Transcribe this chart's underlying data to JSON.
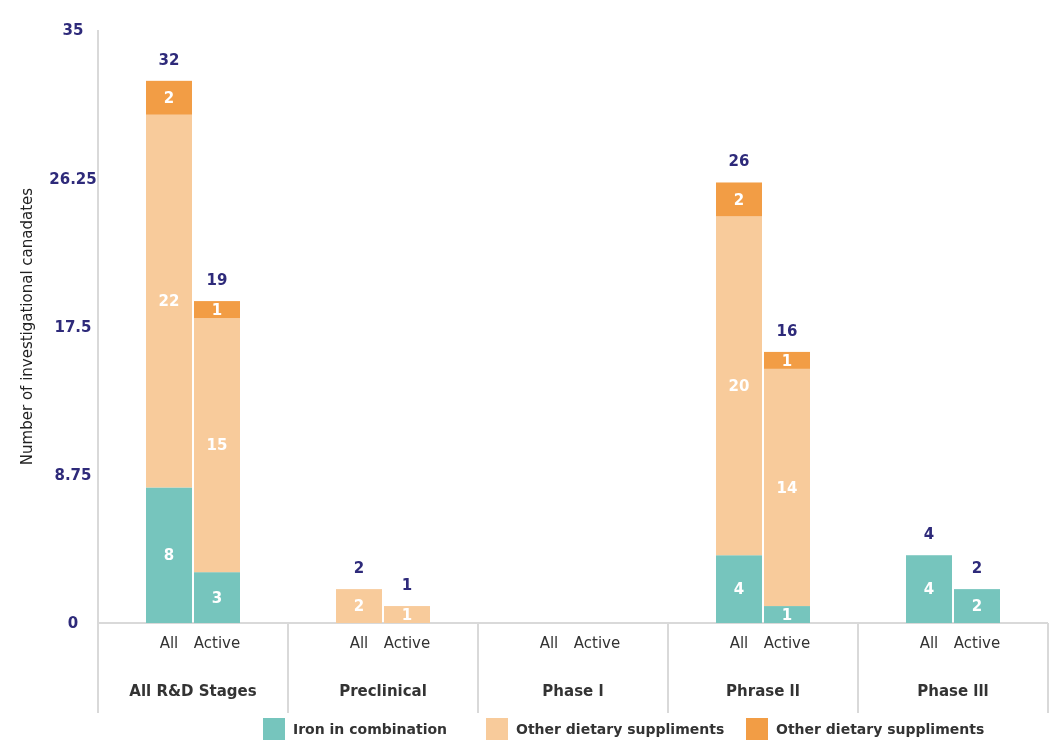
{
  "chart_data": {
    "type": "bar",
    "stacked": true,
    "ylabel": "Number of investigational canadates",
    "categories": [
      "All",
      "Active",
      "All",
      "Active",
      "All",
      "Active",
      "All",
      "Active",
      "All",
      "Active"
    ],
    "series": [
      {
        "name": "Iron in combination",
        "color": "#76c5bd",
        "values": [
          8,
          3,
          null,
          null,
          null,
          null,
          4,
          1,
          4,
          2
        ]
      },
      {
        "name": "Other dietary suppliments",
        "color": "#f8cb9b",
        "values": [
          22,
          15,
          2,
          1,
          null,
          null,
          20,
          14,
          null,
          null
        ]
      },
      {
        "name": "Other dietary suppliments",
        "color": "#f29d45",
        "values": [
          2,
          1,
          null,
          null,
          null,
          null,
          2,
          1,
          null,
          null
        ]
      }
    ],
    "totals": [
      "32",
      "19",
      "2",
      "1",
      null,
      null,
      "26",
      "16",
      "4",
      "2"
    ],
    "annotations": [
      "All R&D Stages",
      "Preclinical",
      "Phase l",
      "Phrase ll",
      "Phase lll"
    ],
    "ylim": [
      0,
      35
    ],
    "yticks": [
      0,
      8.75,
      17.5,
      26.25,
      35
    ],
    "data_labels": true,
    "grid": false,
    "legend": "bottom"
  }
}
